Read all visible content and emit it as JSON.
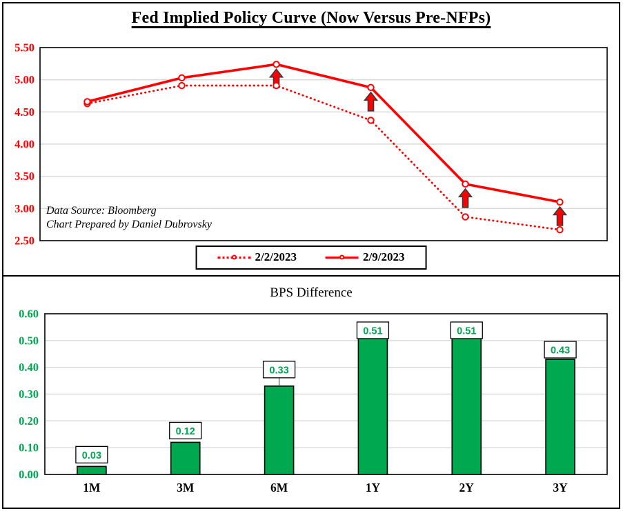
{
  "colors": {
    "line_red": "#ff0000",
    "bar_green": "#00a84f",
    "value_label_green": "#00a651",
    "axis_label_green": "#00a651",
    "gridline_gray": "#d9d9d9",
    "border_black": "#000000"
  },
  "chart_data": [
    {
      "type": "line",
      "title": "Fed Implied Policy Curve (Now Versus Pre-NFPs)",
      "categories": [
        "1M",
        "3M",
        "6M",
        "1Y",
        "2Y",
        "3Y"
      ],
      "series": [
        {
          "name": "2/2/2023",
          "style": "dotted",
          "values": [
            4.63,
            4.91,
            4.91,
            4.37,
            2.87,
            2.67
          ]
        },
        {
          "name": "2/9/2023",
          "style": "solid",
          "values": [
            4.66,
            5.03,
            5.24,
            4.88,
            3.38,
            3.1
          ]
        }
      ],
      "ylim": [
        2.5,
        5.5
      ],
      "yticks": [
        "5.50",
        "5.00",
        "4.50",
        "4.00",
        "3.50",
        "3.00",
        "2.50"
      ],
      "grid": "horizontal",
      "legend_position": "bottom",
      "annotations": {
        "up_arrows_at": [
          "6M",
          "1Y",
          "2Y",
          "3Y"
        ]
      },
      "notes": [
        "Data Source: Bloomberg",
        "Chart Prepared by Daniel Dubrovsky"
      ]
    },
    {
      "type": "bar",
      "title": "BPS Difference",
      "categories": [
        "1M",
        "3M",
        "6M",
        "1Y",
        "2Y",
        "3Y"
      ],
      "values": [
        0.03,
        0.12,
        0.33,
        0.51,
        0.51,
        0.43
      ],
      "data_labels": [
        "0.03",
        "0.12",
        "0.33",
        "0.51",
        "0.51",
        "0.43"
      ],
      "label_gaps": [
        5,
        5,
        12,
        -1,
        -1,
        2
      ],
      "label_leader_index": 2,
      "ylim": [
        0,
        0.6
      ],
      "yticks": [
        "0.60",
        "0.50",
        "0.40",
        "0.30",
        "0.20",
        "0.10",
        "0.00"
      ],
      "grid": "horizontal",
      "legend_position": "none"
    }
  ]
}
